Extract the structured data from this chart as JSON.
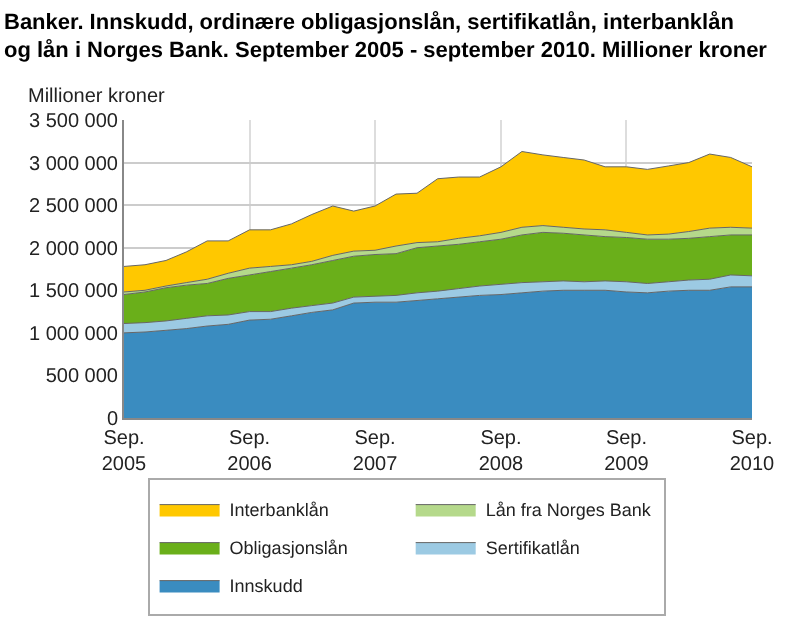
{
  "chart_data": {
    "type": "area",
    "stacked": true,
    "title": "Banker. Innskudd, ordinære obligasjonslån, sertifikatlån, interbanklån\nog lån i Norges Bank. September 2005 - september 2010. Millioner kroner",
    "ylabel": "Millioner kroner",
    "x": [
      "2005-09",
      "2005-11",
      "2006-01",
      "2006-03",
      "2006-05",
      "2006-07",
      "2006-09",
      "2006-11",
      "2007-01",
      "2007-03",
      "2007-05",
      "2007-07",
      "2007-09",
      "2007-11",
      "2008-01",
      "2008-03",
      "2008-05",
      "2008-07",
      "2008-09",
      "2008-11",
      "2009-01",
      "2009-03",
      "2009-05",
      "2009-07",
      "2009-09",
      "2009-11",
      "2010-01",
      "2010-03",
      "2010-05",
      "2010-07",
      "2010-09"
    ],
    "series": [
      {
        "name": "Innskudd",
        "color": "#3a8cc0",
        "values": [
          1000000,
          1010000,
          1030000,
          1050000,
          1080000,
          1100000,
          1150000,
          1160000,
          1200000,
          1240000,
          1270000,
          1350000,
          1360000,
          1360000,
          1380000,
          1400000,
          1420000,
          1440000,
          1450000,
          1470000,
          1490000,
          1500000,
          1500000,
          1500000,
          1480000,
          1470000,
          1490000,
          1500000,
          1500000,
          1540000,
          1540000
        ]
      },
      {
        "name": "Sertifikatlån",
        "color": "#9ccae3",
        "values": [
          110000,
          110000,
          110000,
          120000,
          120000,
          110000,
          100000,
          90000,
          90000,
          80000,
          80000,
          70000,
          70000,
          80000,
          90000,
          90000,
          100000,
          110000,
          120000,
          120000,
          110000,
          110000,
          100000,
          110000,
          120000,
          110000,
          110000,
          120000,
          130000,
          140000,
          130000
        ]
      },
      {
        "name": "Obligasjonslån",
        "color": "#6aaf1a",
        "values": [
          340000,
          360000,
          390000,
          390000,
          380000,
          430000,
          430000,
          470000,
          470000,
          480000,
          500000,
          480000,
          490000,
          490000,
          530000,
          530000,
          520000,
          520000,
          530000,
          560000,
          580000,
          560000,
          550000,
          520000,
          520000,
          520000,
          500000,
          490000,
          500000,
          470000,
          480000
        ]
      },
      {
        "name": "Lån fra Norges Bank",
        "color": "#b5d98b",
        "values": [
          30000,
          20000,
          20000,
          30000,
          50000,
          60000,
          80000,
          60000,
          40000,
          40000,
          60000,
          60000,
          50000,
          90000,
          60000,
          50000,
          70000,
          70000,
          80000,
          90000,
          80000,
          70000,
          70000,
          80000,
          60000,
          50000,
          60000,
          80000,
          100000,
          90000,
          80000
        ]
      },
      {
        "name": "Interbanklån",
        "color": "#ffc800",
        "values": [
          300000,
          300000,
          300000,
          360000,
          450000,
          380000,
          450000,
          430000,
          480000,
          550000,
          580000,
          470000,
          520000,
          610000,
          580000,
          740000,
          720000,
          690000,
          770000,
          890000,
          830000,
          820000,
          810000,
          740000,
          770000,
          770000,
          800000,
          810000,
          870000,
          820000,
          720000
        ]
      }
    ],
    "xlim": [
      "2005-09",
      "2010-09"
    ],
    "xticks": [
      {
        "value": "2005-09",
        "label": "Sep.\n2005"
      },
      {
        "value": "2006-09",
        "label": "Sep.\n2006"
      },
      {
        "value": "2007-09",
        "label": "Sep.\n2007"
      },
      {
        "value": "2008-09",
        "label": "Sep.\n2008"
      },
      {
        "value": "2009-09",
        "label": "Sep.\n2009"
      },
      {
        "value": "2010-09",
        "label": "Sep.\n2010"
      }
    ],
    "ylim": [
      0,
      3500000
    ],
    "yticks": [
      0,
      {
        "value": 500000,
        "label": "500 000"
      },
      {
        "value": 1000000,
        "label": "1 000 000"
      },
      {
        "value": 1500000,
        "label": "1 500 000"
      },
      {
        "value": 2000000,
        "label": "2 000 000"
      },
      {
        "value": 2500000,
        "label": "2 500 000"
      },
      {
        "value": 3000000,
        "label": "3 000 000"
      },
      {
        "value": 3500000,
        "label": "3 500 000"
      }
    ],
    "grid": true,
    "legend": "bottom"
  }
}
